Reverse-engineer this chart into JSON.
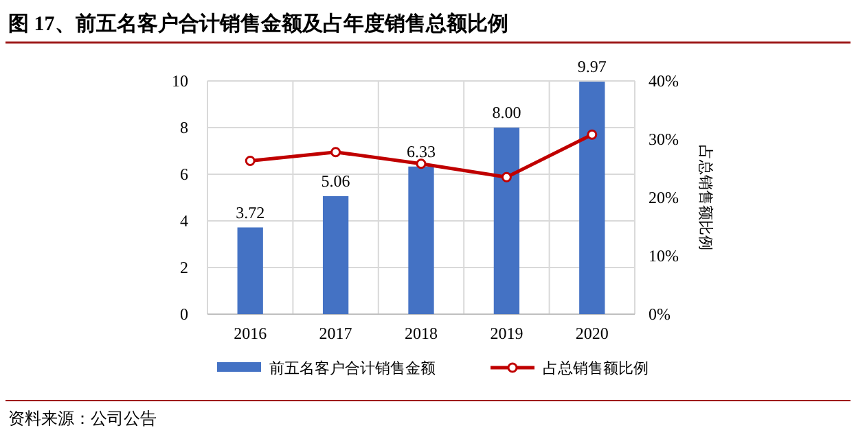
{
  "chart_data": {
    "type": "bar",
    "title": "图 17、前五名客户合计销售金额及占年度销售总额比例",
    "y2label": "占总销售额比例",
    "categories": [
      "2016",
      "2017",
      "2018",
      "2019",
      "2020"
    ],
    "series": [
      {
        "name": "前五名客户合计销售金额",
        "color": "#4472c4",
        "values": [
          3.72,
          5.06,
          6.33,
          8.0,
          9.97
        ],
        "value_labels": [
          "3.72",
          "5.06",
          "6.33",
          "8.00",
          "9.97"
        ]
      },
      {
        "name": "占总销售额比例",
        "type": "line",
        "axis": "y2",
        "color": "#c00000",
        "values": [
          26.3,
          27.8,
          25.8,
          23.5,
          30.8
        ]
      }
    ],
    "ylim": [
      0,
      10
    ],
    "yticks": [
      0,
      2,
      4,
      6,
      8,
      10
    ],
    "y2lim": [
      0,
      40
    ],
    "y2ticks": [
      {
        "value": 0,
        "label": "0%"
      },
      {
        "value": 10,
        "label": "10%"
      },
      {
        "value": 20,
        "label": "20%"
      },
      {
        "value": 30,
        "label": "30%"
      },
      {
        "value": 40,
        "label": "40%"
      }
    ],
    "grid": true,
    "legend": "bottom",
    "marker": "circle",
    "line_style": "solid",
    "annotations": [
      "资料来源：公司公告"
    ]
  }
}
